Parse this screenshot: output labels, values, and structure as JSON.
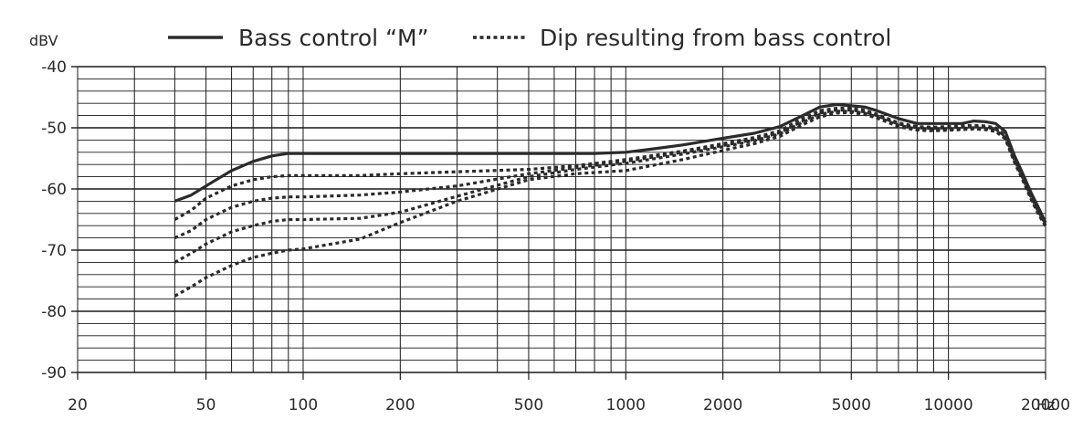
{
  "chart_data": {
    "type": "line",
    "title": "",
    "xlabel": "Hz",
    "ylabel": "dBV",
    "x_scale": "log",
    "xlim": [
      20,
      20000
    ],
    "ylim": [
      -90,
      -40
    ],
    "grid": true,
    "legend_position": "top",
    "x_ticks": [
      20,
      50,
      100,
      200,
      500,
      1000,
      2000,
      5000,
      10000,
      20000
    ],
    "x_tick_labels": [
      "20",
      "50",
      "100",
      "200",
      "500",
      "1000",
      "2000",
      "5000",
      "10000",
      "20000"
    ],
    "y_ticks": [
      -40,
      -50,
      -60,
      -70,
      -80,
      -90
    ],
    "y_tick_labels": [
      "-40",
      "-50",
      "-60",
      "-70",
      "-80",
      "-90"
    ],
    "legend": [
      {
        "label": "Bass control “M”",
        "style": "solid"
      },
      {
        "label": "Dip resulting from bass control",
        "style": "dotted"
      }
    ],
    "colors": {
      "line": "#2b2b2b",
      "grid": "#1a1a1a"
    },
    "series": [
      {
        "name": "Bass control “M”",
        "style": "solid",
        "x": [
          40,
          45,
          50,
          60,
          70,
          80,
          90,
          100,
          150,
          200,
          300,
          500,
          700,
          800,
          1000,
          1200,
          1500,
          2000,
          2500,
          3000,
          3500,
          4000,
          4500,
          5000,
          5500,
          6000,
          7000,
          8000,
          9000,
          10000,
          11000,
          12000,
          13000,
          14000,
          15000,
          16000,
          17000,
          18000,
          19000,
          20000
        ],
        "y": [
          -62,
          -61,
          -59.5,
          -57,
          -55.5,
          -54.6,
          -54.2,
          -54.2,
          -54.2,
          -54.2,
          -54.2,
          -54.2,
          -54.2,
          -54.2,
          -54,
          -53.5,
          -52.8,
          -51.7,
          -50.9,
          -49.8,
          -48.1,
          -46.6,
          -46.2,
          -46.4,
          -46.6,
          -47.2,
          -48.5,
          -49.3,
          -49.3,
          -49.3,
          -49.3,
          -48.9,
          -49,
          -49.3,
          -50.6,
          -54.5,
          -57.5,
          -60.5,
          -63,
          -65.5
        ]
      },
      {
        "name": "",
        "style": "dotted",
        "x": [
          40,
          45,
          50,
          60,
          70,
          80,
          90,
          100,
          150,
          200,
          300,
          500,
          700,
          1000,
          1500,
          2000,
          2500,
          3000,
          3500,
          4000,
          4500,
          5000,
          5500,
          6000,
          7000,
          8000,
          9000,
          10000,
          12000,
          13000,
          14000,
          15000,
          16000,
          17000,
          18000,
          19000,
          20000
        ],
        "y": [
          -65,
          -63.5,
          -61.5,
          -59.5,
          -58.5,
          -58,
          -57.8,
          -57.8,
          -57.8,
          -57.5,
          -57.2,
          -56.8,
          -56.2,
          -55.2,
          -53.8,
          -52.6,
          -51.6,
          -50.5,
          -48.6,
          -47.2,
          -46.8,
          -46.8,
          -47.1,
          -47.8,
          -49.2,
          -49.8,
          -49.9,
          -49.8,
          -49.6,
          -49.7,
          -50,
          -51.2,
          -55,
          -58,
          -61,
          -63.5,
          -65.5
        ]
      },
      {
        "name": "",
        "style": "dotted",
        "x": [
          40,
          45,
          50,
          60,
          70,
          80,
          90,
          100,
          150,
          200,
          300,
          500,
          700,
          1000,
          1500,
          2000,
          2500,
          3000,
          3500,
          4000,
          4500,
          5000,
          5500,
          6000,
          7000,
          8000,
          9000,
          10000,
          12000,
          13000,
          14000,
          15000,
          16000,
          17000,
          18000,
          19000,
          20000
        ],
        "y": [
          -68,
          -66.8,
          -65,
          -63,
          -62,
          -61.5,
          -61.3,
          -61.3,
          -61,
          -60.5,
          -59.5,
          -57.5,
          -56.5,
          -55.5,
          -54,
          -52.9,
          -51.9,
          -50.8,
          -49,
          -47.6,
          -47.1,
          -47.1,
          -47.4,
          -48,
          -49.4,
          -50,
          -50.1,
          -50,
          -49.8,
          -49.9,
          -50.2,
          -51.4,
          -55.2,
          -58.2,
          -61.2,
          -63.7,
          -65.7
        ]
      },
      {
        "name": "",
        "style": "dotted",
        "x": [
          40,
          45,
          50,
          60,
          70,
          80,
          90,
          100,
          150,
          200,
          300,
          500,
          700,
          1000,
          1500,
          2000,
          2500,
          3000,
          3500,
          4000,
          4500,
          5000,
          5500,
          6000,
          7000,
          8000,
          9000,
          10000,
          12000,
          13000,
          14000,
          15000,
          16000,
          17000,
          18000,
          19000,
          20000
        ],
        "y": [
          -72,
          -70.5,
          -69,
          -67,
          -66,
          -65.3,
          -65,
          -65,
          -64.8,
          -63.8,
          -61.2,
          -58,
          -56.8,
          -55.8,
          -54.3,
          -53.1,
          -52.1,
          -51,
          -49.2,
          -47.8,
          -47.3,
          -47.3,
          -47.6,
          -48.2,
          -49.6,
          -50.2,
          -50.3,
          -50.2,
          -50,
          -50.1,
          -50.4,
          -51.6,
          -55.4,
          -58.4,
          -61.4,
          -63.9,
          -65.9
        ]
      },
      {
        "name": "",
        "style": "dotted",
        "x": [
          40,
          45,
          50,
          60,
          70,
          80,
          90,
          100,
          150,
          200,
          300,
          500,
          700,
          1000,
          1500,
          2000,
          2500,
          3000,
          3500,
          4000,
          4500,
          5000,
          5500,
          6000,
          7000,
          8000,
          9000,
          10000,
          12000,
          13000,
          14000,
          15000,
          16000,
          17000,
          18000,
          19000,
          20000
        ],
        "y": [
          -77.5,
          -76,
          -74.5,
          -72.5,
          -71.2,
          -70.5,
          -70,
          -69.8,
          -68.2,
          -65.5,
          -62,
          -58.5,
          -57.5,
          -57,
          -55.2,
          -53.7,
          -52.6,
          -51.4,
          -49.6,
          -48.2,
          -47.6,
          -47.5,
          -47.8,
          -48.4,
          -49.8,
          -50.4,
          -50.5,
          -50.4,
          -50.2,
          -50.3,
          -50.6,
          -51.8,
          -55.6,
          -58.6,
          -61.6,
          -64.1,
          -66.1
        ]
      }
    ]
  }
}
